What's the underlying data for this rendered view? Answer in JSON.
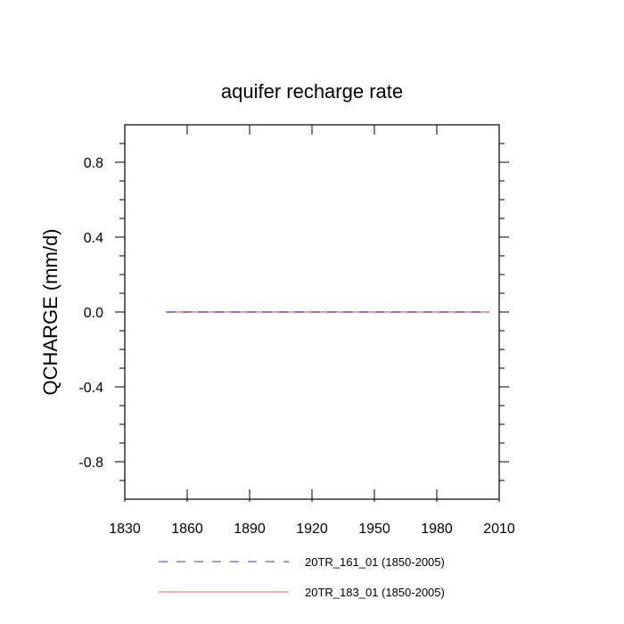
{
  "chart_data": {
    "type": "line",
    "title": "aquifer recharge rate",
    "xlabel": "",
    "ylabel": "QCHARGE  (mm/d)",
    "xlim": [
      1830,
      2010
    ],
    "ylim": [
      -1.0,
      1.0
    ],
    "x_ticks": [
      1830,
      1860,
      1890,
      1920,
      1950,
      1980,
      2010
    ],
    "x_tick_labels": [
      "1830",
      "1860",
      "1890",
      "1920",
      "1950",
      "1980",
      "2010"
    ],
    "y_ticks": [
      -0.8,
      -0.4,
      0.0,
      0.4,
      0.8
    ],
    "y_tick_labels": [
      "-0.8",
      "-0.4",
      "0.0",
      "0.4",
      "0.8"
    ],
    "grid": false,
    "legend_position": "bottom",
    "series": [
      {
        "name": "20TR_161_01 (1850-2005)",
        "color": "#6a5acd",
        "style": "dashed",
        "x": [
          1850,
          2005
        ],
        "y": [
          0.0,
          0.0
        ]
      },
      {
        "name": "20TR_183_01 (1850-2005)",
        "color": "#f08080",
        "style": "solid",
        "x": [
          1850,
          2005
        ],
        "y": [
          0.0,
          0.0
        ]
      }
    ]
  }
}
